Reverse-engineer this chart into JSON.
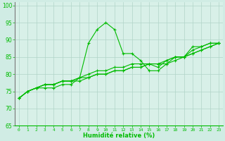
{
  "xlabel": "Humidité relative (%)",
  "bg_color": "#d0ece4",
  "grid_color": "#b0d4c8",
  "line_color": "#00bb00",
  "plot_bg": "#d8f0e8",
  "xlim": [
    -0.5,
    23.5
  ],
  "ylim": [
    65,
    101
  ],
  "yticks": [
    65,
    70,
    75,
    80,
    85,
    90,
    95,
    100
  ],
  "xticks": [
    0,
    1,
    2,
    3,
    4,
    5,
    6,
    7,
    8,
    9,
    10,
    11,
    12,
    13,
    14,
    15,
    16,
    17,
    18,
    19,
    20,
    21,
    22,
    23
  ],
  "series": [
    [
      73,
      75,
      76,
      76,
      76,
      77,
      77,
      79,
      89,
      93,
      95,
      93,
      86,
      86,
      84,
      81,
      81,
      83,
      85,
      85,
      88,
      88,
      89,
      89
    ],
    [
      73,
      75,
      76,
      77,
      77,
      78,
      78,
      79,
      80,
      81,
      81,
      82,
      82,
      83,
      83,
      83,
      82,
      84,
      85,
      85,
      87,
      88,
      89,
      89
    ],
    [
      73,
      75,
      76,
      77,
      77,
      78,
      78,
      79,
      79,
      80,
      80,
      81,
      81,
      82,
      82,
      83,
      83,
      84,
      85,
      85,
      86,
      87,
      88,
      89
    ],
    [
      73,
      75,
      76,
      77,
      77,
      78,
      78,
      78,
      79,
      80,
      80,
      81,
      81,
      82,
      82,
      83,
      83,
      83,
      84,
      85,
      86,
      87,
      88,
      89
    ]
  ]
}
